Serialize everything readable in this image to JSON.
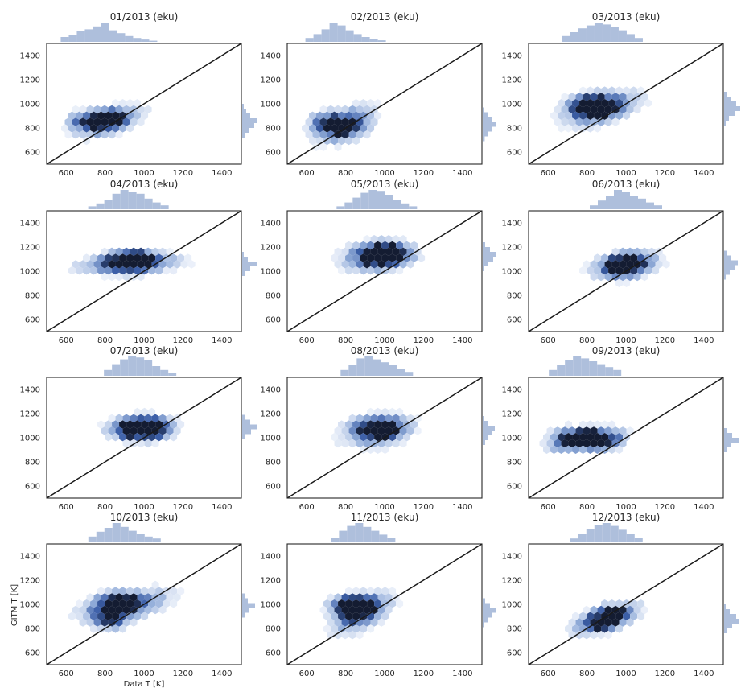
{
  "figure": {
    "xlabel": "Data T [K]",
    "ylabel": "GITM T [K]",
    "hex_color": "#3b5ea7",
    "hist_color": "#aebfdc",
    "diag_color": "#1a1a1a"
  },
  "chart_data": [
    {
      "type": "heatmap",
      "title": "01/2013 (eku)",
      "xlim": [
        500,
        1500
      ],
      "ylim": [
        500,
        1500
      ],
      "xticks": [
        600,
        800,
        1000,
        1200,
        1400
      ],
      "yticks": [
        600,
        800,
        1000,
        1200,
        1400
      ],
      "reference_line": "y = x",
      "center": [
        820,
        860
      ],
      "spread": [
        110,
        70
      ],
      "tilt": 0.45,
      "peaks": [
        [
          815,
          865
        ],
        [
          700,
          860
        ]
      ],
      "marginal_x": [
        0.25,
        0.35,
        0.55,
        0.65,
        0.8,
        1.0,
        0.6,
        0.45,
        0.3,
        0.2,
        0.12,
        0.06
      ],
      "marginal_y": [
        0.1,
        0.25,
        0.5,
        0.9,
        0.75,
        0.4,
        0.15
      ]
    },
    {
      "type": "heatmap",
      "title": "02/2013 (eku)",
      "xlim": [
        500,
        1500
      ],
      "ylim": [
        500,
        1500
      ],
      "xticks": [
        600,
        800,
        1000,
        1200,
        1400
      ],
      "yticks": [
        600,
        800,
        1000,
        1200,
        1400
      ],
      "reference_line": "y = x",
      "center": [
        800,
        830
      ],
      "spread": [
        100,
        90
      ],
      "tilt": 0.5,
      "peaks": [
        [
          790,
          805
        ],
        [
          700,
          850
        ]
      ],
      "marginal_x": [
        0.2,
        0.4,
        0.65,
        1.0,
        0.85,
        0.6,
        0.4,
        0.25,
        0.15,
        0.08
      ],
      "marginal_y": [
        0.1,
        0.35,
        0.6,
        0.85,
        0.55,
        0.3,
        0.12
      ]
    },
    {
      "type": "heatmap",
      "title": "03/2013 (eku)",
      "xlim": [
        500,
        1500
      ],
      "ylim": [
        500,
        1500
      ],
      "xticks": [
        600,
        800,
        1000,
        1200,
        1400
      ],
      "yticks": [
        600,
        800,
        1000,
        1200,
        1400
      ],
      "reference_line": "y = x",
      "center": [
        880,
        960
      ],
      "spread": [
        130,
        80
      ],
      "tilt": 0.35,
      "peaks": [
        [
          780,
          990
        ],
        [
          860,
          1000
        ],
        [
          840,
          950
        ]
      ],
      "marginal_x": [
        0.3,
        0.5,
        0.7,
        0.85,
        1.0,
        0.9,
        0.75,
        0.6,
        0.4,
        0.2
      ],
      "marginal_y": [
        0.15,
        0.4,
        0.75,
        1.0,
        0.65,
        0.3,
        0.1
      ]
    },
    {
      "type": "heatmap",
      "title": "04/2013 (eku)",
      "xlim": [
        500,
        1500
      ],
      "ylim": [
        500,
        1500
      ],
      "xticks": [
        600,
        800,
        1000,
        1200,
        1400
      ],
      "yticks": [
        600,
        800,
        1000,
        1200,
        1400
      ],
      "reference_line": "y = x",
      "center": [
        920,
        1060
      ],
      "spread": [
        170,
        55
      ],
      "tilt": 0.1,
      "peaks": [
        [
          950,
          1090
        ],
        [
          1000,
          1090
        ],
        [
          870,
          1080
        ]
      ],
      "marginal_x": [
        0.15,
        0.3,
        0.5,
        0.8,
        1.0,
        0.9,
        0.8,
        0.55,
        0.35,
        0.2
      ],
      "marginal_y": [
        0.1,
        0.35,
        0.9,
        0.5,
        0.15
      ]
    },
    {
      "type": "heatmap",
      "title": "05/2013 (eku)",
      "xlim": [
        500,
        1500
      ],
      "ylim": [
        500,
        1500
      ],
      "xticks": [
        600,
        800,
        1000,
        1200,
        1400
      ],
      "yticks": [
        600,
        800,
        1000,
        1200,
        1400
      ],
      "reference_line": "y = x",
      "center": [
        960,
        1120
      ],
      "spread": [
        120,
        80
      ],
      "tilt": 0.15,
      "peaks": [
        [
          1000,
          1150
        ],
        [
          950,
          1120
        ],
        [
          1050,
          1140
        ]
      ],
      "marginal_x": [
        0.15,
        0.35,
        0.6,
        0.85,
        1.0,
        0.95,
        0.75,
        0.5,
        0.3,
        0.15
      ],
      "marginal_y": [
        0.15,
        0.45,
        0.85,
        0.65,
        0.3,
        0.1
      ]
    },
    {
      "type": "heatmap",
      "title": "06/2013 (eku)",
      "xlim": [
        500,
        1500
      ],
      "ylim": [
        500,
        1500
      ],
      "xticks": [
        600,
        800,
        1000,
        1200,
        1400
      ],
      "yticks": [
        600,
        800,
        1000,
        1200,
        1400
      ],
      "reference_line": "y = x",
      "center": [
        1000,
        1050
      ],
      "spread": [
        110,
        70
      ],
      "tilt": 0.25,
      "peaks": [
        [
          1020,
          1060
        ],
        [
          960,
          1040
        ]
      ],
      "marginal_x": [
        0.2,
        0.45,
        0.7,
        1.0,
        0.9,
        0.7,
        0.55,
        0.35,
        0.2
      ],
      "marginal_y": [
        0.15,
        0.4,
        0.85,
        0.7,
        0.35,
        0.1
      ]
    },
    {
      "type": "heatmap",
      "title": "07/2013 (eku)",
      "xlim": [
        500,
        1500
      ],
      "ylim": [
        500,
        1500
      ],
      "xticks": [
        600,
        800,
        1000,
        1200,
        1400
      ],
      "yticks": [
        600,
        800,
        1000,
        1200,
        1400
      ],
      "reference_line": "y = x",
      "center": [
        980,
        1090
      ],
      "spread": [
        110,
        65
      ],
      "tilt": 0.1,
      "peaks": [
        [
          930,
          1070
        ],
        [
          1050,
          1060
        ],
        [
          1000,
          1090
        ]
      ],
      "marginal_x": [
        0.3,
        0.6,
        0.85,
        1.0,
        0.95,
        0.8,
        0.5,
        0.3,
        0.15
      ],
      "marginal_y": [
        0.15,
        0.5,
        0.9,
        0.55,
        0.2
      ]
    },
    {
      "type": "heatmap",
      "title": "08/2013 (eku)",
      "xlim": [
        500,
        1500
      ],
      "ylim": [
        500,
        1500
      ],
      "xticks": [
        600,
        800,
        1000,
        1200,
        1400
      ],
      "yticks": [
        600,
        800,
        1000,
        1200,
        1400
      ],
      "reference_line": "y = x",
      "center": [
        960,
        1060
      ],
      "spread": [
        120,
        85
      ],
      "tilt": 0.15,
      "peaks": [
        [
          960,
          1070
        ],
        [
          1000,
          1080
        ]
      ],
      "marginal_x": [
        0.3,
        0.55,
        0.9,
        1.0,
        0.85,
        0.7,
        0.55,
        0.35,
        0.2
      ],
      "marginal_y": [
        0.1,
        0.35,
        0.75,
        0.6,
        0.35,
        0.15
      ]
    },
    {
      "type": "heatmap",
      "title": "09/2013 (eku)",
      "xlim": [
        500,
        1500
      ],
      "ylim": [
        500,
        1500
      ],
      "xticks": [
        600,
        800,
        1000,
        1200,
        1400
      ],
      "yticks": [
        600,
        800,
        1000,
        1200,
        1400
      ],
      "reference_line": "y = x",
      "center": [
        790,
        980
      ],
      "spread": [
        120,
        55
      ],
      "tilt": 0.25,
      "peaks": [
        [
          700,
          1000
        ],
        [
          800,
          1000
        ],
        [
          900,
          980
        ]
      ],
      "marginal_x": [
        0.3,
        0.55,
        0.8,
        1.0,
        0.9,
        0.75,
        0.6,
        0.45,
        0.3
      ],
      "marginal_y": [
        0.15,
        0.5,
        0.95,
        0.45,
        0.15
      ]
    },
    {
      "type": "heatmap",
      "title": "10/2013 (eku)",
      "xlim": [
        500,
        1500
      ],
      "ylim": [
        500,
        1500
      ],
      "xticks": [
        600,
        800,
        1000,
        1200,
        1400
      ],
      "yticks": [
        600,
        800,
        1000,
        1200,
        1400
      ],
      "reference_line": "y = x",
      "center": [
        900,
        990
      ],
      "spread": [
        150,
        75
      ],
      "tilt": 0.3,
      "peaks": [
        [
          830,
          1010
        ],
        [
          830,
          870
        ],
        [
          900,
          1000
        ]
      ],
      "marginal_x": [
        0.3,
        0.55,
        0.75,
        1.0,
        0.8,
        0.6,
        0.45,
        0.3,
        0.2
      ],
      "marginal_y": [
        0.15,
        0.35,
        0.8,
        0.45,
        0.2
      ]
    },
    {
      "type": "heatmap",
      "title": "11/2013 (eku)",
      "xlim": [
        500,
        1500
      ],
      "ylim": [
        500,
        1500
      ],
      "xticks": [
        600,
        800,
        1000,
        1200,
        1400
      ],
      "yticks": [
        600,
        800,
        1000,
        1200,
        1400
      ],
      "reference_line": "y = x",
      "center": [
        890,
        930
      ],
      "spread": [
        100,
        90
      ],
      "tilt": 0.7,
      "peaks": [
        [
          830,
          980
        ],
        [
          870,
          980
        ],
        [
          800,
          980
        ]
      ],
      "marginal_x": [
        0.25,
        0.6,
        0.85,
        1.0,
        0.8,
        0.6,
        0.4,
        0.25
      ],
      "marginal_y": [
        0.15,
        0.45,
        0.85,
        0.55,
        0.3,
        0.1
      ]
    },
    {
      "type": "heatmap",
      "title": "12/2013 (eku)",
      "xlim": [
        500,
        1500
      ],
      "ylim": [
        500,
        1500
      ],
      "xticks": [
        600,
        800,
        1000,
        1200,
        1400
      ],
      "yticks": [
        600,
        800,
        1000,
        1200,
        1400
      ],
      "reference_line": "y = x",
      "center": [
        900,
        880
      ],
      "spread": [
        110,
        60
      ],
      "tilt": 0.5,
      "peaks": [
        [
          860,
          850
        ],
        [
          940,
          920
        ]
      ],
      "marginal_x": [
        0.2,
        0.45,
        0.7,
        0.9,
        1.0,
        0.85,
        0.65,
        0.45,
        0.25
      ],
      "marginal_y": [
        0.1,
        0.35,
        0.75,
        0.95,
        0.5,
        0.2
      ]
    }
  ]
}
